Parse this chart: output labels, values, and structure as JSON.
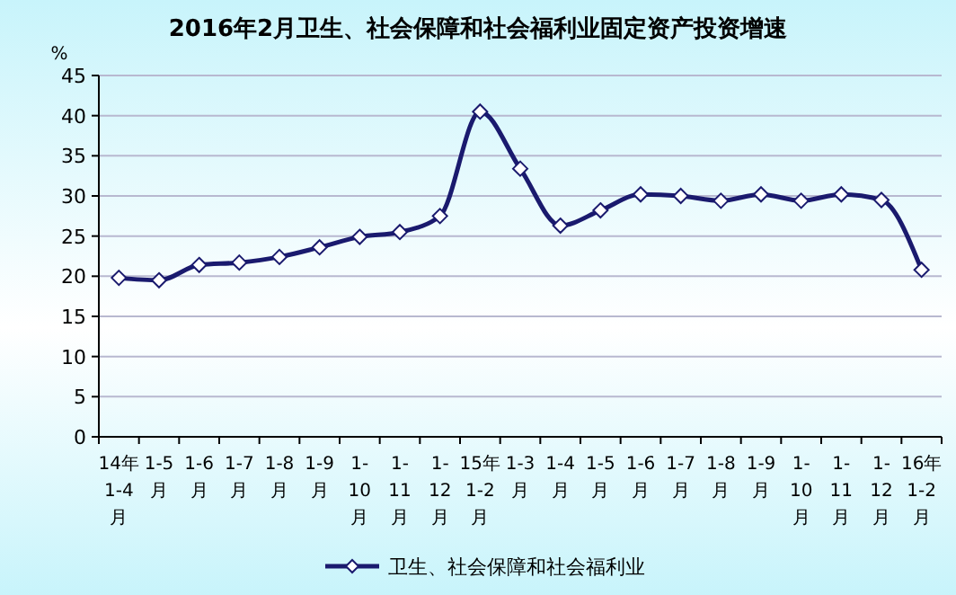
{
  "chart_data": {
    "type": "line",
    "title": "2016年2月卫生、社会保障和社会福利业固定资产投资增速",
    "ylabel": "%",
    "categories": [
      "14年1-4月",
      "1-5月",
      "1-6月",
      "1-7月",
      "1-8月",
      "1-9月",
      "1-10月",
      "1-11月",
      "1-12月",
      "15年1-2月",
      "1-3月",
      "1-4月",
      "1-5月",
      "1-6月",
      "1-7月",
      "1-8月",
      "1-9月",
      "1-10月",
      "1-11月",
      "1-12月",
      "16年1-2月"
    ],
    "series": [
      {
        "name": "卫生、社会保障和社会福利业",
        "color": "#1a1a6e",
        "values": [
          19.8,
          19.5,
          21.4,
          21.7,
          22.4,
          23.6,
          24.9,
          25.5,
          27.5,
          40.5,
          33.4,
          26.3,
          28.2,
          30.2,
          30.0,
          29.4,
          30.2,
          29.4,
          30.2,
          29.5,
          20.8
        ]
      }
    ],
    "ylim": [
      0,
      45
    ],
    "yticks": [
      0,
      5,
      10,
      15,
      20,
      25,
      30,
      35,
      40,
      45
    ],
    "grid": "y",
    "legend": "bottom",
    "marker": "diamond",
    "line_style": "solid"
  }
}
